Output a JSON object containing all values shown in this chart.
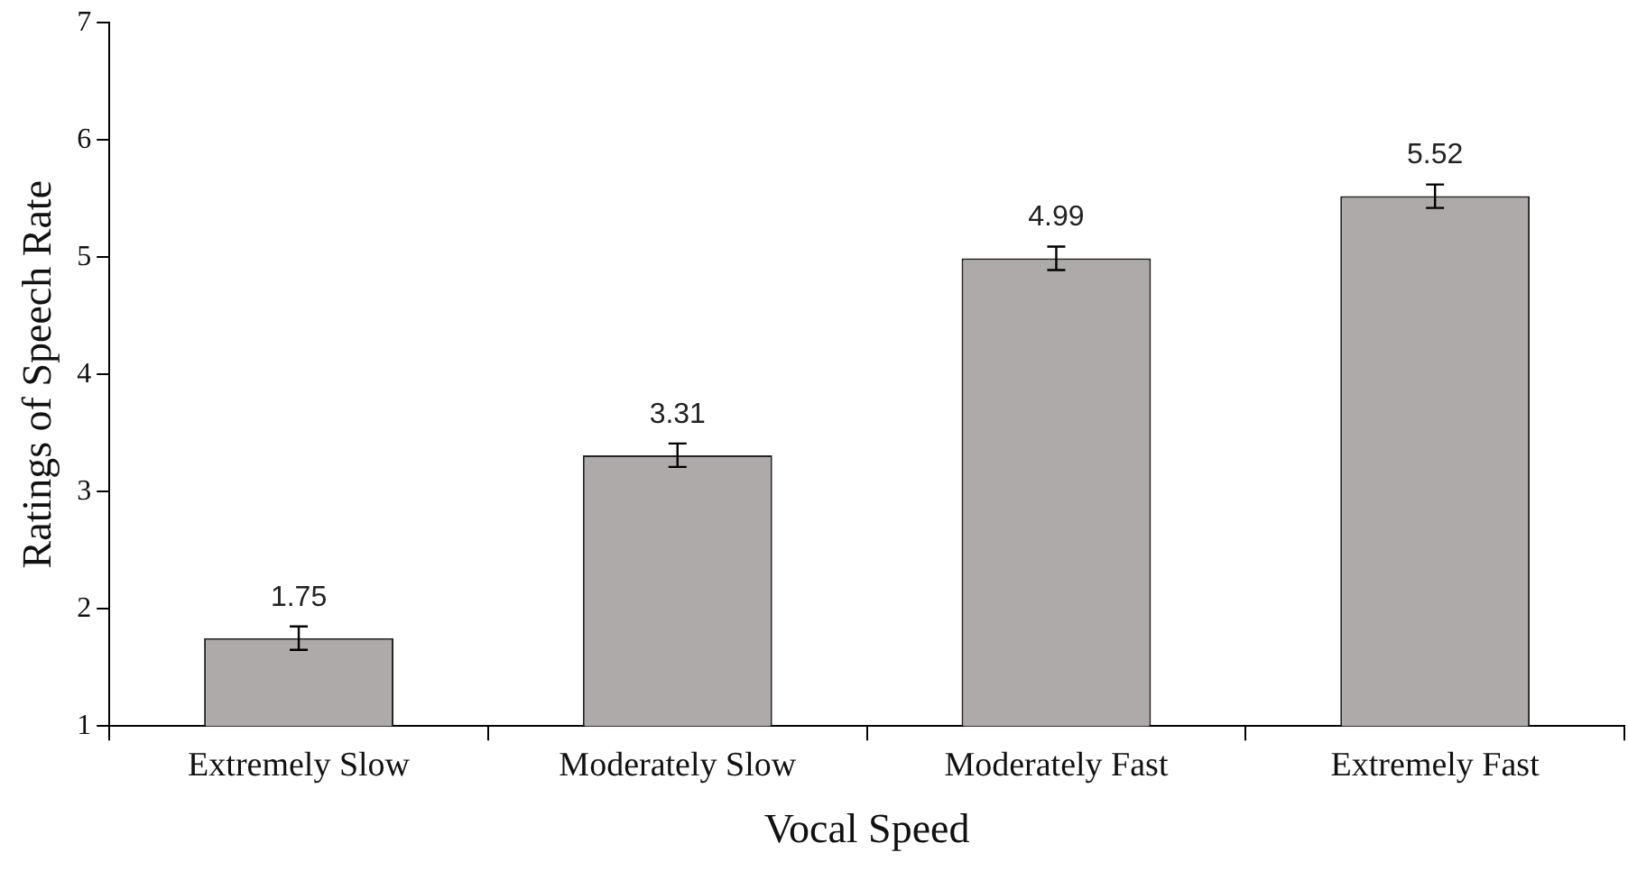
{
  "chart_data": {
    "type": "bar",
    "xlabel": "Vocal Speed",
    "ylabel": "Ratings of Speech Rate",
    "categories": [
      "Extremely Slow",
      "Moderately Slow",
      "Moderately Fast",
      "Extremely Fast"
    ],
    "values": [
      1.75,
      3.31,
      4.99,
      5.52
    ],
    "errors": [
      0.1,
      0.1,
      0.1,
      0.1
    ],
    "color": "#aeaaaa",
    "ylim": [
      1,
      7
    ],
    "yticks": [
      1,
      2,
      3,
      4,
      5,
      6,
      7
    ],
    "grid": false,
    "data_labels": true
  }
}
